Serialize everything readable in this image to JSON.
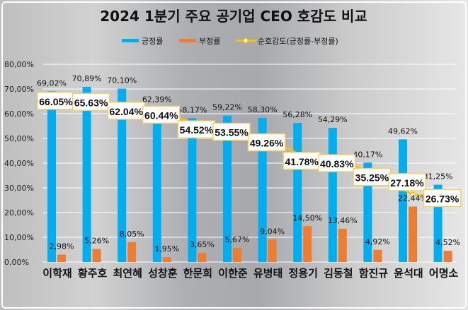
{
  "chart_data": {
    "type": "bar",
    "title": "2024 1분기 주요 공기업 CEO 호감도 비교",
    "categories": [
      "이학재",
      "황주호",
      "최연혜",
      "성창훈",
      "한문희",
      "이한준",
      "유병태",
      "정용기",
      "김동철",
      "함진규",
      "윤석대",
      "어명소"
    ],
    "series": [
      {
        "name": "긍정률",
        "type": "bar",
        "color": "#00aeef",
        "values": [
          69.02,
          70.89,
          70.1,
          62.39,
          58.17,
          59.22,
          58.3,
          56.28,
          54.29,
          40.17,
          49.62,
          31.25
        ],
        "labels": [
          "69,02%",
          "70,89%",
          "70,10%",
          "62,39%",
          "58,17%",
          "59,22%",
          "58,30%",
          "56,28%",
          "54,29%",
          "40,17%",
          "49,62%",
          "31,25%"
        ]
      },
      {
        "name": "부정률",
        "type": "bar",
        "color": "#ed7d31",
        "values": [
          2.98,
          5.26,
          8.05,
          1.95,
          3.65,
          5.67,
          9.04,
          14.5,
          13.46,
          4.92,
          22.44,
          4.52
        ],
        "labels": [
          "2,98%",
          "5,26%",
          "8,05%",
          "1,95%",
          "3,65%",
          "5,67%",
          "9,04%",
          "14,50%",
          "13,46%",
          "4,92%",
          "22,44%",
          "4,52%"
        ]
      },
      {
        "name": "순호감도(긍정률-부정률)",
        "type": "line",
        "color": "#ffc000",
        "values": [
          66.05,
          65.63,
          62.04,
          60.44,
          54.52,
          53.55,
          49.26,
          41.78,
          40.83,
          35.25,
          27.18,
          26.73
        ],
        "labels": [
          "66.05%",
          "65.63%",
          "62.04%",
          "60.44%",
          "54.52%",
          "53.55%",
          "49.26%",
          "41.78%",
          "40.83%",
          "35.25%",
          "27.18%",
          "26.73%"
        ]
      }
    ],
    "ylim": [
      0,
      80
    ],
    "yticks": [
      "0,00%",
      "10,00%",
      "20,00%",
      "30,00%",
      "40,00%",
      "50,00%",
      "60,00%",
      "70,00%",
      "80,00%"
    ],
    "grid": true,
    "legend": "top"
  }
}
